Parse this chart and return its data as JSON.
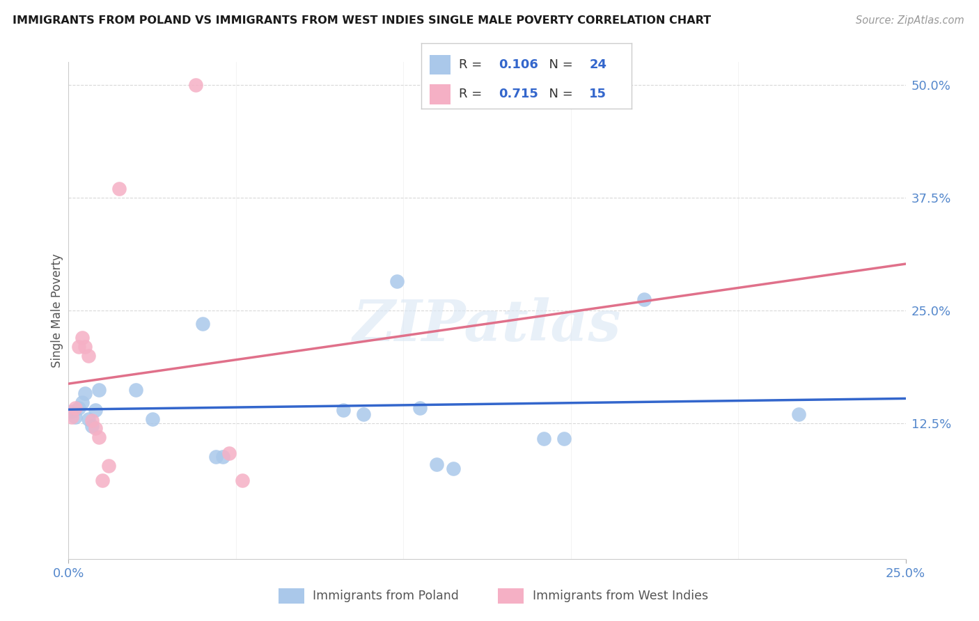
{
  "title": "IMMIGRANTS FROM POLAND VS IMMIGRANTS FROM WEST INDIES SINGLE MALE POVERTY CORRELATION CHART",
  "source": "Source: ZipAtlas.com",
  "ylabel": "Single Male Poverty",
  "xlim": [
    0.0,
    0.25
  ],
  "ylim": [
    -0.025,
    0.525
  ],
  "y_tick_positions": [
    0.125,
    0.25,
    0.375,
    0.5
  ],
  "y_tick_labels_right": [
    "12.5%",
    "25.0%",
    "37.5%",
    "50.0%"
  ],
  "x_tick_labels": [
    "0.0%",
    "25.0%"
  ],
  "poland_R": "0.106",
  "poland_N": "24",
  "wi_R": "0.715",
  "wi_N": "15",
  "poland_color": "#aac8ea",
  "wi_color": "#f5b0c5",
  "poland_line_color": "#3366cc",
  "wi_line_color": "#e0708a",
  "legend_text_color": "#3366cc",
  "accent_color": "#5588cc",
  "poland_x": [
    0.001,
    0.002,
    0.003,
    0.004,
    0.005,
    0.006,
    0.007,
    0.008,
    0.009,
    0.02,
    0.025,
    0.04,
    0.044,
    0.046,
    0.082,
    0.088,
    0.098,
    0.105,
    0.11,
    0.115,
    0.142,
    0.148,
    0.172,
    0.218
  ],
  "poland_y": [
    0.138,
    0.132,
    0.142,
    0.148,
    0.158,
    0.13,
    0.122,
    0.14,
    0.162,
    0.162,
    0.13,
    0.235,
    0.088,
    0.088,
    0.14,
    0.135,
    0.282,
    0.142,
    0.08,
    0.075,
    0.108,
    0.108,
    0.262,
    0.135
  ],
  "wi_x": [
    0.001,
    0.002,
    0.003,
    0.004,
    0.005,
    0.006,
    0.007,
    0.008,
    0.009,
    0.01,
    0.012,
    0.015,
    0.038,
    0.048,
    0.052
  ],
  "wi_y": [
    0.132,
    0.142,
    0.21,
    0.22,
    0.21,
    0.2,
    0.128,
    0.12,
    0.11,
    0.062,
    0.078,
    0.385,
    0.5,
    0.092,
    0.062
  ],
  "watermark": "ZIPatlas",
  "bg_color": "#ffffff",
  "grid_color": "#d8d8d8"
}
